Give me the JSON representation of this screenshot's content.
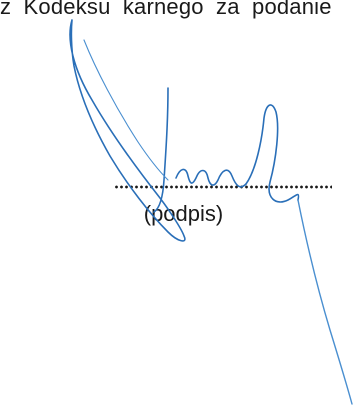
{
  "document": {
    "top_line": "z Kodeksu karnego za podanie",
    "dotted_line": "..........................................",
    "caption": "(podpis)"
  },
  "signature": {
    "ink_color": "#2a6fb8",
    "ink_color_light": "#4a8fd0"
  }
}
